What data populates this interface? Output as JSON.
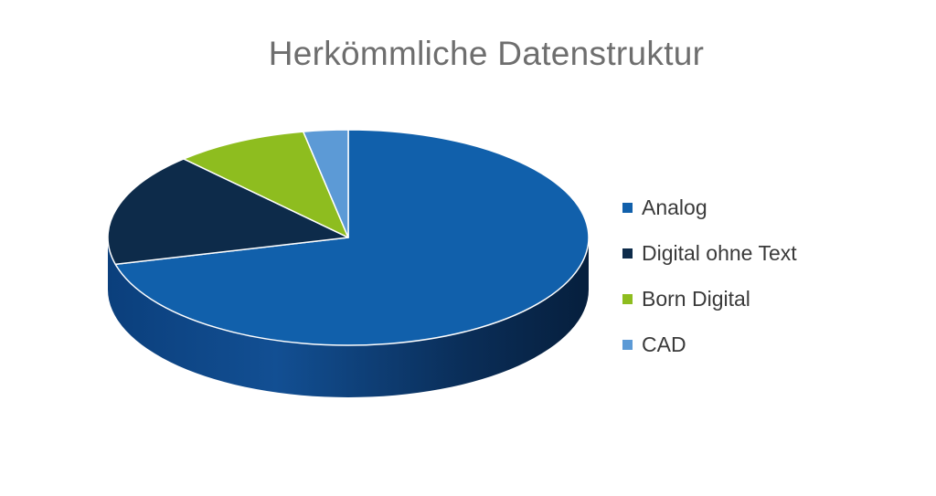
{
  "chart_data": {
    "type": "pie",
    "title": "Herkömmliche Datenstruktur",
    "legend_position": "right",
    "categories": [
      "Analog",
      "Digital ohne Text",
      "Born Digital",
      "CAD"
    ],
    "values": [
      71,
      17,
      9,
      3
    ],
    "colors": [
      "#1160ab",
      "#0d2b4a",
      "#8ebd1f",
      "#5c9ad6"
    ]
  }
}
